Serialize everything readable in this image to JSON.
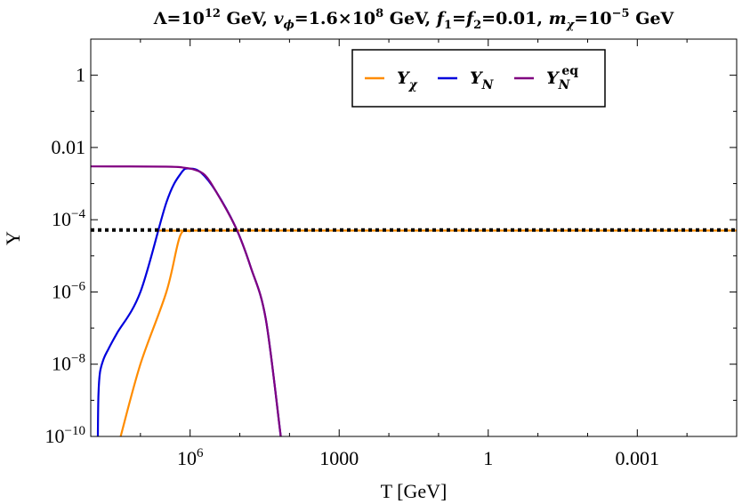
{
  "chart_data": {
    "type": "line",
    "title_parts": {
      "lambda_prefix": "Λ=10",
      "lambda_exp": "12",
      "lambda_unit": " GeV,  ",
      "v_prefix": "v",
      "v_sub": "ϕ",
      "v_mid": "=1.6×10",
      "v_exp": "8",
      "v_unit": " GeV,  ",
      "f1": "f",
      "f1_sub": "1",
      "f_eq": "=",
      "f2": "f",
      "f2_sub": "2",
      "f_val": "=0.01,  ",
      "m_prefix": "m",
      "m_sub": "χ",
      "m_mid": "=10",
      "m_exp": "−5",
      "m_unit": " GeV"
    },
    "xlabel": "T [GeV]",
    "ylabel": "Y",
    "x_scale": "log",
    "x_reversed": true,
    "y_scale": "log",
    "xlim": [
      100000000.0,
      1e-05
    ],
    "ylim": [
      1e-10,
      10
    ],
    "x_ticks": [
      {
        "value": 1000000.0,
        "base": "10",
        "exp": "6"
      },
      {
        "value": 1000,
        "label": "1000"
      },
      {
        "value": 1,
        "label": "1"
      },
      {
        "value": 0.001,
        "label": "0.001"
      }
    ],
    "y_ticks": [
      {
        "value": 1,
        "label": "1"
      },
      {
        "value": 0.01,
        "label": "0.01"
      },
      {
        "value": 0.0001,
        "base": "10",
        "exp": "−4"
      },
      {
        "value": 1e-06,
        "base": "10",
        "exp": "−6"
      },
      {
        "value": 1e-08,
        "base": "10",
        "exp": "−8"
      },
      {
        "value": 1e-10,
        "base": "10",
        "exp": "−10"
      }
    ],
    "legend_position": "top-center",
    "series": [
      {
        "key": "Ychi",
        "name_base": "Y",
        "name_sub": "χ",
        "color": "#ff8c00",
        "points": [
          [
            25000000.0,
            1e-10
          ],
          [
            10000000.0,
            1e-08
          ],
          [
            3000000.0,
            1e-06
          ],
          [
            1600000.0,
            3.5e-05
          ],
          [
            1000000.0,
            4.8e-05
          ],
          [
            700000.0,
            5e-05
          ],
          [
            1e-05,
            5e-05
          ]
        ]
      },
      {
        "key": "YN",
        "name_base": "Y",
        "name_sub": "N",
        "color": "#0000dd",
        "points": [
          [
            72000000.0,
            1e-10
          ],
          [
            70000000.0,
            1.5e-09
          ],
          [
            65000000.0,
            6e-09
          ],
          [
            55000000.0,
            1.4e-08
          ],
          [
            45000000.0,
            2.5e-08
          ],
          [
            30000000.0,
            7e-08
          ],
          [
            10000000.0,
            1e-06
          ],
          [
            3000000.0,
            0.0003
          ],
          [
            1500000.0,
            0.002
          ],
          [
            1000000.0,
            0.0026
          ],
          [
            600000.0,
            0.002
          ],
          [
            300000.0,
            0.0006
          ],
          [
            120000.0,
            6e-05
          ],
          [
            60000.0,
            4.8e-06
          ],
          [
            30000.0,
            1.8e-07
          ],
          [
            15000.0,
            1e-10
          ]
        ]
      },
      {
        "key": "YNeq",
        "name_base": "Y",
        "name_sub": "N",
        "name_sup": "eq",
        "color": "#800080",
        "points": [
          [
            100000000.0,
            0.003
          ],
          [
            3000000.0,
            0.00295
          ],
          [
            1300000.0,
            0.00275
          ],
          [
            800000.0,
            0.0024
          ],
          [
            500000.0,
            0.0017
          ],
          [
            300000.0,
            0.0006
          ],
          [
            120000.0,
            6e-05
          ],
          [
            60000.0,
            4.8e-06
          ],
          [
            30000.0,
            1.8e-07
          ],
          [
            15000.0,
            1e-10
          ]
        ]
      }
    ],
    "reference_line": {
      "y": 5.2e-05,
      "style": "dotted",
      "color": "#000000"
    }
  }
}
